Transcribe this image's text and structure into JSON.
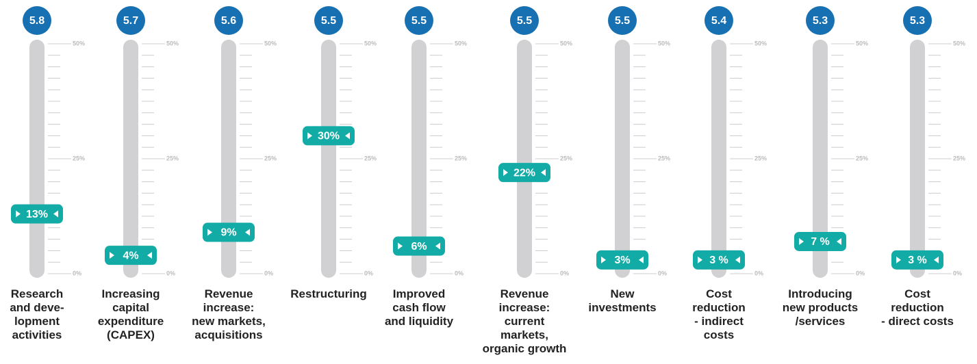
{
  "chart_data": {
    "type": "slider",
    "categories": [
      "Research\nand deve-\nlopment\nactivities",
      "Increasing\ncapital\nexpenditure\n(CAPEX)",
      "Revenue\nincrease:\nnew markets,\nacquisitions",
      "Restructuring",
      "Improved\ncash flow\nand liquidity",
      "Revenue\nincrease:\ncurrent\nmarkets,\norganic growth",
      "New\ninvestments",
      "Cost\nreduction\n- indirect\ncosts",
      "Introducing\nnew products\n/services",
      "Cost\nreduction\n- direct costs"
    ],
    "scores": [
      5.8,
      5.7,
      5.6,
      5.5,
      5.5,
      5.5,
      5.5,
      5.4,
      5.3,
      5.3
    ],
    "values": [
      13,
      4,
      9,
      30,
      6,
      22,
      3,
      3,
      7,
      3
    ],
    "value_labels": [
      "13%",
      "4%",
      "9%",
      "30%",
      "6%",
      "22%",
      "3%",
      "3 %",
      "7 %",
      "3 %"
    ],
    "ylim": [
      0,
      50
    ],
    "yticks": [
      {
        "value": 0,
        "label": "0%"
      },
      {
        "value": 25,
        "label": "25%"
      },
      {
        "value": 50,
        "label": "50%"
      }
    ],
    "color": "#13aba6",
    "score_color": "#1670b2",
    "track_color": "#d1d1d3"
  }
}
